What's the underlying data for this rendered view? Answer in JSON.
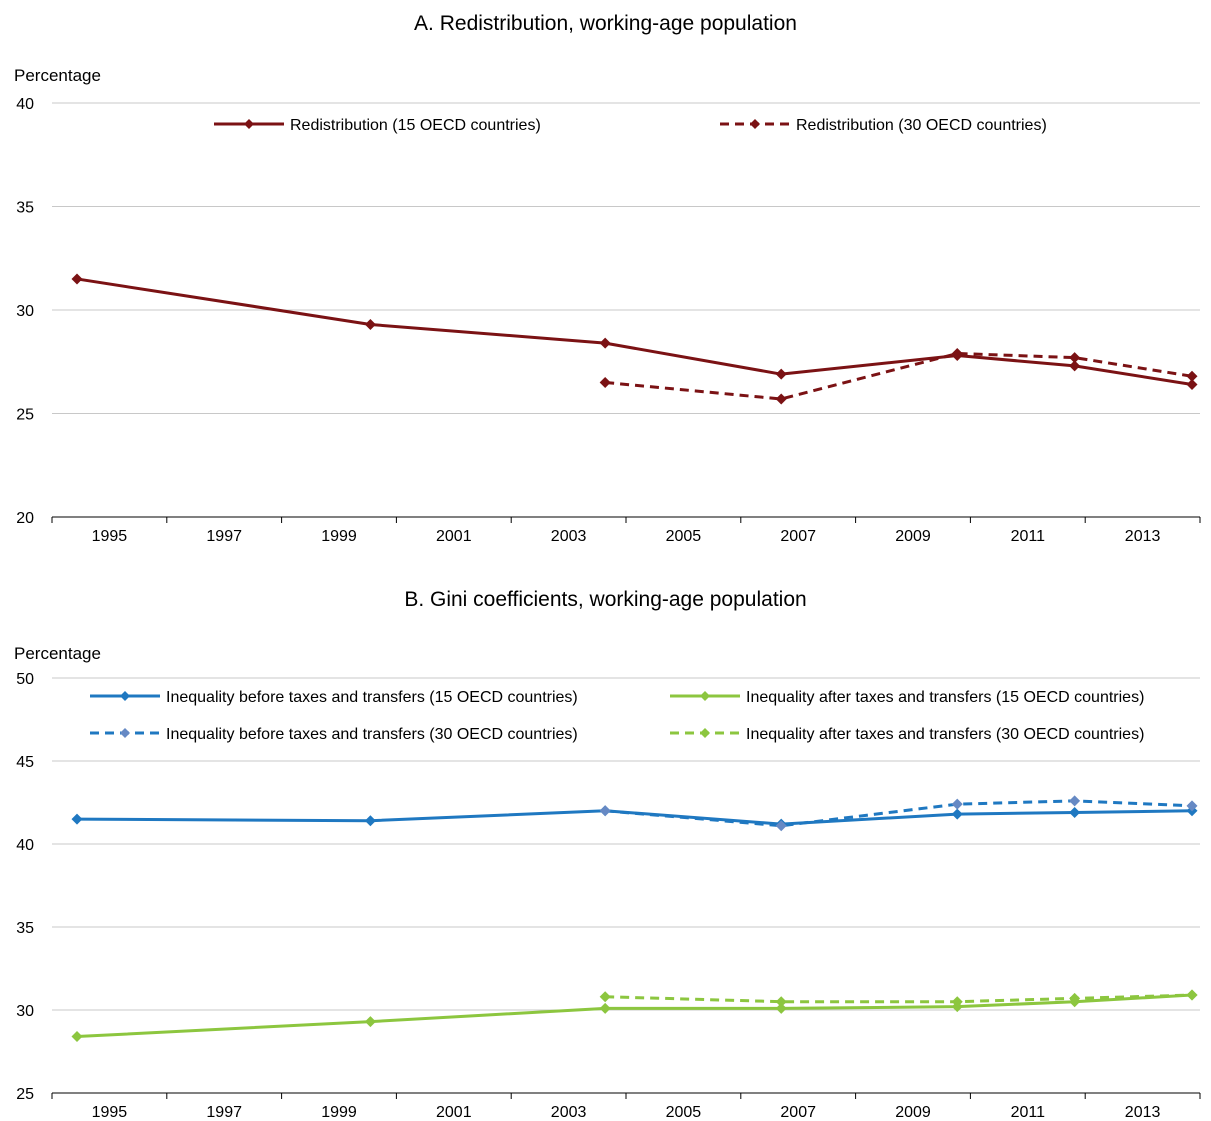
{
  "chart_data": [
    {
      "type": "line",
      "title": "A. Redistribution, working-age population",
      "ylabel": "Percentage",
      "xlabel": "",
      "ylim": [
        20,
        40
      ],
      "yticks": [
        20,
        25,
        30,
        35,
        40
      ],
      "xlim": [
        1995,
        2014
      ],
      "xticks": [
        1995,
        1997,
        1999,
        2001,
        2003,
        2005,
        2007,
        2009,
        2011,
        2013
      ],
      "grid": "horizontal",
      "legend_position": "top",
      "series": [
        {
          "name": "Redistribution (15 OECD countries)",
          "color": "#7b1214",
          "dash": false,
          "x": [
            1995,
            2000,
            2004,
            2007,
            2010,
            2012,
            2014
          ],
          "y": [
            31.5,
            29.3,
            28.4,
            26.9,
            27.8,
            27.3,
            26.4
          ]
        },
        {
          "name": "Redistribution (30 OECD countries)",
          "color": "#7b1214",
          "dash": true,
          "x": [
            2004,
            2007,
            2010,
            2012,
            2014
          ],
          "y": [
            26.5,
            25.7,
            27.9,
            27.7,
            26.8
          ]
        }
      ]
    },
    {
      "type": "line",
      "title": "B. Gini coefficients, working-age population",
      "ylabel": "Percentage",
      "xlabel": "",
      "ylim": [
        25,
        50
      ],
      "yticks": [
        25,
        30,
        35,
        40,
        45,
        50
      ],
      "xlim": [
        1995,
        2014
      ],
      "xticks": [
        1995,
        1997,
        1999,
        2001,
        2003,
        2005,
        2007,
        2009,
        2011,
        2013
      ],
      "grid": "horizontal",
      "legend_position": "top",
      "series": [
        {
          "name": "Inequality before taxes and transfers (15 OECD countries)",
          "color": "#1f78c1",
          "marker_color": "#1f78c1",
          "dash": false,
          "x": [
            1995,
            2000,
            2004,
            2007,
            2010,
            2012,
            2014
          ],
          "y": [
            41.5,
            41.4,
            42.0,
            41.2,
            41.8,
            41.9,
            42.0
          ]
        },
        {
          "name": "Inequality after taxes and transfers (15 OECD countries)",
          "color": "#8cc63f",
          "marker_color": "#8cc63f",
          "dash": false,
          "x": [
            1995,
            2000,
            2004,
            2007,
            2010,
            2012,
            2014
          ],
          "y": [
            28.4,
            29.3,
            30.1,
            30.1,
            30.2,
            30.5,
            30.9
          ]
        },
        {
          "name": "Inequality before taxes and transfers (30 OECD countries)",
          "color": "#1f78c1",
          "marker_color": "#6689c4",
          "dash": true,
          "x": [
            2004,
            2007,
            2010,
            2012,
            2014
          ],
          "y": [
            42.0,
            41.1,
            42.4,
            42.6,
            42.3
          ]
        },
        {
          "name": "Inequality after taxes and transfers (30 OECD countries)",
          "color": "#8cc63f",
          "marker_color": "#8cc63f",
          "dash": true,
          "x": [
            2004,
            2007,
            2010,
            2012,
            2014
          ],
          "y": [
            30.8,
            30.5,
            30.5,
            30.7,
            30.9
          ]
        }
      ]
    }
  ]
}
